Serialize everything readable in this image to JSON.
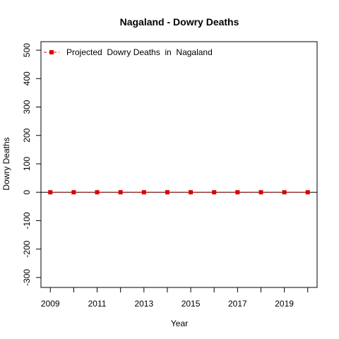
{
  "chart_data": {
    "type": "line",
    "title": "Nagaland  -  Dowry Deaths",
    "xlabel": "Year",
    "ylabel": "Dowry Deaths",
    "x": [
      2009,
      2010,
      2011,
      2012,
      2013,
      2014,
      2015,
      2016,
      2017,
      2018,
      2019,
      2020
    ],
    "series": [
      {
        "name": "Projected  Dowry Deaths  in  Nagaland",
        "values": [
          0,
          0,
          0,
          0,
          0,
          0,
          0,
          0,
          0,
          0,
          0,
          0
        ],
        "color": "#dd0000",
        "line_style": "dashed",
        "marker": "square"
      }
    ],
    "x_ticks": [
      2009,
      2011,
      2013,
      2015,
      2017,
      2019
    ],
    "x_minor_ticks": [
      2010,
      2012,
      2014,
      2016,
      2018,
      2020
    ],
    "y_ticks": [
      -300,
      -200,
      -100,
      0,
      100,
      200,
      300,
      400,
      500
    ],
    "xlim": [
      2008.6,
      2020.4
    ],
    "ylim": [
      -335,
      530
    ],
    "reference_line_y": 0,
    "grid": false,
    "legend_position": "top-left"
  }
}
